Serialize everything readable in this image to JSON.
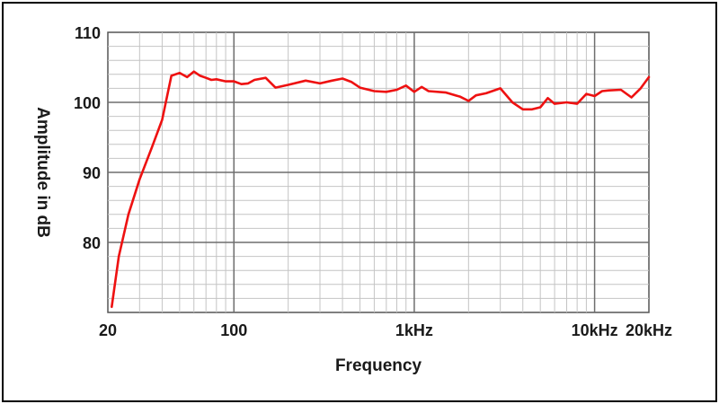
{
  "chart_data": {
    "type": "line",
    "xscale": "log",
    "xlim": [
      20,
      20000
    ],
    "ylim": [
      70,
      110
    ],
    "xlabel": "Frequency",
    "ylabel": "Amplitude in dB",
    "grid": true,
    "x_ticks": [
      {
        "value": 20,
        "label": "20"
      },
      {
        "value": 100,
        "label": "100"
      },
      {
        "value": 1000,
        "label": "1kHz"
      },
      {
        "value": 10000,
        "label": "10kHz"
      },
      {
        "value": 20000,
        "label": "20kHz"
      }
    ],
    "y_ticks": [
      {
        "value": 80,
        "label": "80"
      },
      {
        "value": 90,
        "label": "90"
      },
      {
        "value": 100,
        "label": "100"
      },
      {
        "value": 110,
        "label": "110"
      }
    ],
    "series": [
      {
        "color": "#ee1111",
        "x": [
          21,
          23,
          26,
          30,
          35,
          40,
          45,
          50,
          55,
          60,
          65,
          70,
          75,
          80,
          90,
          100,
          110,
          120,
          130,
          150,
          170,
          200,
          250,
          300,
          350,
          400,
          450,
          500,
          600,
          700,
          800,
          900,
          1000,
          1100,
          1200,
          1500,
          1800,
          2000,
          2200,
          2500,
          3000,
          3500,
          4000,
          4500,
          5000,
          5500,
          6000,
          7000,
          8000,
          9000,
          10000,
          11000,
          12000,
          14000,
          16000,
          18000,
          20000
        ],
        "y": [
          70.8,
          78.0,
          84.0,
          89.0,
          93.5,
          97.5,
          103.8,
          104.2,
          103.6,
          104.4,
          103.8,
          103.5,
          103.2,
          103.3,
          103.0,
          103.0,
          102.6,
          102.7,
          103.2,
          103.5,
          102.1,
          102.5,
          103.1,
          102.7,
          103.1,
          103.4,
          102.9,
          102.1,
          101.6,
          101.5,
          101.8,
          102.4,
          101.5,
          102.2,
          101.6,
          101.4,
          100.8,
          100.2,
          101.0,
          101.3,
          102.0,
          100.0,
          99.0,
          99.0,
          99.3,
          100.6,
          99.8,
          100.0,
          99.8,
          101.2,
          100.9,
          101.6,
          101.7,
          101.8,
          100.7,
          102.0,
          103.6
        ]
      }
    ]
  }
}
